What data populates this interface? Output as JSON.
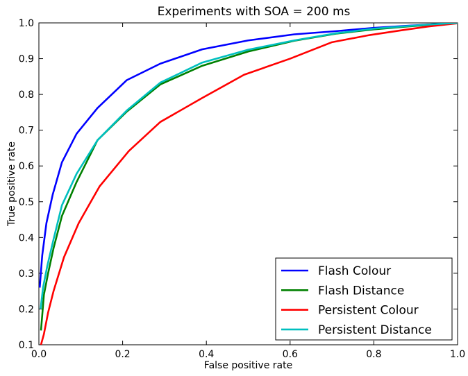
{
  "chart_data": {
    "type": "line",
    "title": "Experiments with SOA = 200 ms",
    "xlabel": "False positive rate",
    "ylabel": "True positive rate",
    "xlim": [
      0.0,
      1.0
    ],
    "ylim": [
      0.1,
      1.0
    ],
    "xticks": [
      0.0,
      0.2,
      0.4,
      0.6,
      0.8,
      1.0
    ],
    "xtick_labels": [
      "0.0",
      "0.2",
      "0.4",
      "0.6",
      "0.8",
      "1.0"
    ],
    "yticks": [
      0.1,
      0.2,
      0.3,
      0.4,
      0.5,
      0.6,
      0.7,
      0.8,
      0.9,
      1.0
    ],
    "ytick_labels": [
      "0.1",
      "0.2",
      "0.3",
      "0.4",
      "0.5",
      "0.6",
      "0.7",
      "0.8",
      "0.9",
      "1.0"
    ],
    "grid": false,
    "legend_position": "bottom-right",
    "series": [
      {
        "name": "Flash Colour",
        "color": "#0000ff",
        "x": [
          0.002,
          0.008,
          0.018,
          0.033,
          0.055,
          0.09,
          0.14,
          0.21,
          0.29,
          0.39,
          0.5,
          0.61,
          0.71,
          0.8,
          0.88,
          0.94,
          1.0
        ],
        "y": [
          0.26,
          0.35,
          0.44,
          0.52,
          0.61,
          0.69,
          0.762,
          0.84,
          0.886,
          0.926,
          0.951,
          0.968,
          0.977,
          0.986,
          0.992,
          0.996,
          1.0
        ]
      },
      {
        "name": "Flash Distance",
        "color": "#008000",
        "x": [
          0.005,
          0.012,
          0.022,
          0.035,
          0.055,
          0.09,
          0.14,
          0.21,
          0.29,
          0.39,
          0.5,
          0.61,
          0.71,
          0.8,
          0.88,
          0.94,
          1.0
        ],
        "y": [
          0.14,
          0.24,
          0.3,
          0.37,
          0.46,
          0.555,
          0.672,
          0.752,
          0.828,
          0.88,
          0.92,
          0.95,
          0.97,
          0.982,
          0.99,
          0.995,
          1.0
        ]
      },
      {
        "name": "Persistent Colour",
        "color": "#ff0000",
        "x": [
          0.005,
          0.012,
          0.022,
          0.035,
          0.06,
          0.095,
          0.145,
          0.215,
          0.29,
          0.39,
          0.49,
          0.6,
          0.7,
          0.79,
          0.87,
          0.93,
          1.0
        ],
        "y": [
          0.1,
          0.13,
          0.19,
          0.25,
          0.345,
          0.44,
          0.543,
          0.642,
          0.723,
          0.79,
          0.855,
          0.9,
          0.946,
          0.966,
          0.98,
          0.99,
          0.999
        ]
      },
      {
        "name": "Persistent Distance",
        "color": "#00bfbf",
        "x": [
          0.004,
          0.01,
          0.02,
          0.034,
          0.055,
          0.09,
          0.14,
          0.21,
          0.29,
          0.39,
          0.5,
          0.61,
          0.71,
          0.8,
          0.88,
          0.94,
          1.0
        ],
        "y": [
          0.2,
          0.26,
          0.32,
          0.39,
          0.49,
          0.578,
          0.672,
          0.755,
          0.833,
          0.889,
          0.925,
          0.951,
          0.971,
          0.984,
          0.991,
          0.996,
          1.0
        ]
      }
    ]
  }
}
